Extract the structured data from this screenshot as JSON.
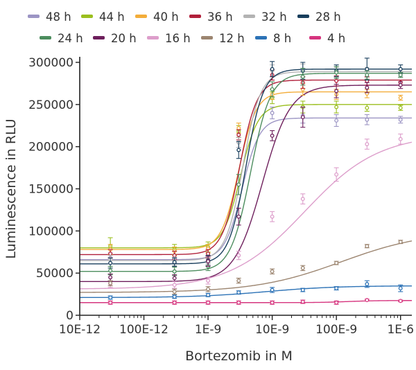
{
  "chart_data": {
    "type": "scatter",
    "title": "",
    "xlabel": "Bortezomib in M",
    "ylabel": "Luminescence in RLU",
    "x_scale": "log",
    "xlim": [
      1e-11,
      1.5e-06
    ],
    "ylim": [
      0,
      300000
    ],
    "x_tick_values": [
      1e-11,
      1e-10,
      1e-09,
      1e-08,
      1e-07,
      1e-06
    ],
    "x_tick_labels": [
      "10E-12",
      "100E-12",
      "1E-9",
      "10E-9",
      "100E-9",
      "1E-6"
    ],
    "y_tick_values": [
      0,
      50000,
      100000,
      150000,
      200000,
      250000,
      300000
    ],
    "y_tick_labels": [
      "0",
      "50000",
      "100000",
      "150000",
      "200000",
      "250000",
      "300000"
    ],
    "grid": false,
    "legend_position": "top",
    "x": [
      3e-11,
      3e-10,
      1e-09,
      3e-09,
      1e-08,
      3e-08,
      1e-07,
      3e-07,
      1e-06
    ],
    "series": [
      {
        "name": "48 h",
        "color": "#9c95c4",
        "values": [
          68000,
          67000,
          66000,
          205000,
          240000,
          237000,
          231000,
          232000,
          232000
        ]
      },
      {
        "name": "44 h",
        "color": "#9bbf1e",
        "values": [
          82000,
          78000,
          81000,
          218000,
          258000,
          247000,
          247000,
          246000,
          246000
        ]
      },
      {
        "name": "40 h",
        "color": "#f3ad3a",
        "values": [
          78000,
          76000,
          79000,
          222000,
          262000,
          268000,
          262000,
          263000,
          258000
        ]
      },
      {
        "name": "36 h",
        "color": "#b11f3a",
        "values": [
          73000,
          71000,
          73000,
          214000,
          285000,
          276000,
          278000,
          278000,
          276000
        ]
      },
      {
        "name": "32 h",
        "color": "#b3b3b3",
        "values": [
          66000,
          64000,
          66000,
          205000,
          290000,
          290000,
          288000,
          288000,
          286000
        ]
      },
      {
        "name": "28 h",
        "color": "#183e5c",
        "values": [
          62000,
          63000,
          65000,
          196000,
          292000,
          290000,
          290000,
          292000,
          292000
        ]
      },
      {
        "name": "24 h",
        "color": "#4c8d5e",
        "values": [
          53000,
          52000,
          58000,
          155000,
          268000,
          283000,
          288000,
          285000,
          285000
        ]
      },
      {
        "name": "20 h",
        "color": "#6e1f5c",
        "values": [
          45000,
          44000,
          64000,
          117000,
          213000,
          235000,
          266000,
          270000,
          273000
        ]
      },
      {
        "name": "16 h",
        "color": "#dd9ecb",
        "values": [
          37000,
          36000,
          41000,
          71000,
          117000,
          138000,
          167000,
          203000,
          209000
        ]
      },
      {
        "name": "12 h",
        "color": "#9c8570",
        "values": [
          38000,
          28000,
          31000,
          41000,
          52000,
          56000,
          62000,
          82000,
          87000
        ]
      },
      {
        "name": "8 h",
        "color": "#2c72b6",
        "values": [
          21000,
          22000,
          24000,
          27000,
          30000,
          30000,
          32000,
          37000,
          32000
        ]
      },
      {
        "name": "4 h",
        "color": "#d6347e",
        "values": [
          15000,
          15000,
          15000,
          15000,
          15000,
          16000,
          15000,
          18000,
          17000
        ]
      }
    ],
    "error_bars": [
      [
        6000,
        5000,
        5000,
        6000,
        7000,
        9000,
        7000,
        6000,
        4000
      ],
      [
        10000,
        6000,
        6000,
        7000,
        7000,
        7000,
        7000,
        4000,
        3000
      ],
      [
        6000,
        5000,
        5000,
        6000,
        6000,
        7000,
        6000,
        5000,
        3000
      ],
      [
        5000,
        5000,
        5000,
        6000,
        6000,
        7000,
        6000,
        5000,
        3000
      ],
      [
        5000,
        5000,
        5000,
        6000,
        7000,
        8000,
        6000,
        6000,
        3000
      ],
      [
        6000,
        5000,
        6000,
        10000,
        9000,
        10000,
        7000,
        13000,
        5000
      ],
      [
        5000,
        5000,
        5000,
        12000,
        9000,
        10000,
        7000,
        5000,
        3000
      ],
      [
        4000,
        4000,
        6000,
        10000,
        6000,
        12000,
        8000,
        6000,
        4000
      ],
      [
        4000,
        4000,
        4000,
        5000,
        6000,
        6000,
        8000,
        6000,
        6000
      ],
      [
        3000,
        3000,
        3000,
        3000,
        3000,
        3000,
        2000,
        2000,
        2000
      ],
      [
        2000,
        2000,
        2000,
        2000,
        3000,
        2000,
        2000,
        4000,
        4000
      ],
      [
        2000,
        2000,
        2000,
        2000,
        2000,
        2000,
        2000,
        1000,
        1000
      ]
    ],
    "fit_curves": [
      {
        "bottom": 66000,
        "top": 234000,
        "ec50": 3.4e-09,
        "hill": 3.2
      },
      {
        "bottom": 80000,
        "top": 250000,
        "ec50": 3.2e-09,
        "hill": 3.2
      },
      {
        "bottom": 78000,
        "top": 265000,
        "ec50": 3e-09,
        "hill": 3.2
      },
      {
        "bottom": 72000,
        "top": 279000,
        "ec50": 3.1e-09,
        "hill": 3.2
      },
      {
        "bottom": 65000,
        "top": 289000,
        "ec50": 3.5e-09,
        "hill": 3.2
      },
      {
        "bottom": 61000,
        "top": 292000,
        "ec50": 3.9e-09,
        "hill": 3.2
      },
      {
        "bottom": 52000,
        "top": 287000,
        "ec50": 4.6e-09,
        "hill": 2.8
      },
      {
        "bottom": 40000,
        "top": 273000,
        "ec50": 7e-09,
        "hill": 2.0
      },
      {
        "bottom": 31000,
        "top": 215000,
        "ec50": 3.2e-08,
        "hill": 0.75
      },
      {
        "bottom": 27000,
        "top": 100000,
        "ec50": 1.2e-07,
        "hill": 0.65
      },
      {
        "bottom": 21000,
        "top": 35000,
        "ec50": 8e-09,
        "hill": 0.8
      },
      {
        "bottom": 15000,
        "top": 17500,
        "ec50": 1.5e-07,
        "hill": 2.0
      }
    ]
  }
}
